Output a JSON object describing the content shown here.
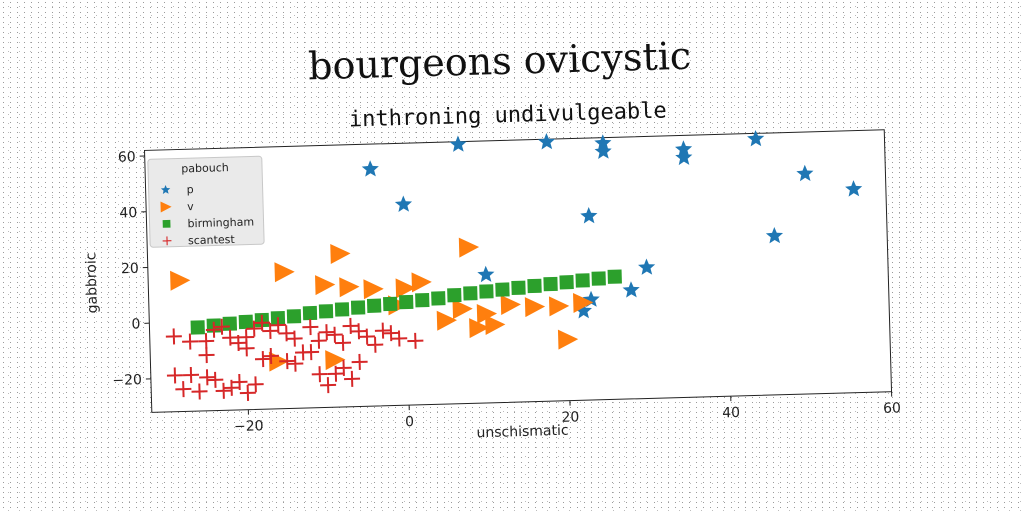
{
  "chart_data": {
    "type": "scatter",
    "title": "bourgeons ovicystic",
    "subtitle": "inthroning undivulgeable",
    "xlabel": "unschismatic",
    "ylabel": "gabbroic",
    "xlim": [
      -32,
      60
    ],
    "ylim": [
      -32,
      62
    ],
    "xticks": [
      -20,
      0,
      20,
      40,
      60
    ],
    "yticks": [
      -20,
      0,
      20,
      40,
      60
    ],
    "xtick_labels": [
      "−20",
      "0",
      "20",
      "40",
      "60"
    ],
    "ytick_labels": [
      "−20",
      "0",
      "20",
      "40",
      "60"
    ],
    "grid": false,
    "legend": {
      "title": "pabouch",
      "placement": "top-left"
    },
    "series": [
      {
        "name": "p",
        "marker": "star",
        "color": "#1f77b4",
        "points": [
          [
            -4,
            53
          ],
          [
            0,
            40
          ],
          [
            7,
            61
          ],
          [
            18,
            61
          ],
          [
            25,
            60
          ],
          [
            25,
            57
          ],
          [
            23,
            34
          ],
          [
            35,
            57
          ],
          [
            35,
            54
          ],
          [
            44,
            60
          ],
          [
            50,
            47
          ],
          [
            56,
            41
          ],
          [
            46,
            25
          ],
          [
            30,
            15
          ],
          [
            28,
            7
          ],
          [
            23,
            4
          ],
          [
            22,
            0
          ],
          [
            10,
            14
          ]
        ]
      },
      {
        "name": "v",
        "marker": "triangle-right",
        "color": "#ff7f0e",
        "points": [
          [
            -28,
            15
          ],
          [
            -15,
            17
          ],
          [
            -8,
            23
          ],
          [
            8,
            24
          ],
          [
            -10,
            12
          ],
          [
            -7,
            11
          ],
          [
            -4,
            10
          ],
          [
            -1,
            4
          ],
          [
            2,
            12
          ],
          [
            7,
            2
          ],
          [
            10,
            0
          ],
          [
            11,
            -4
          ],
          [
            13,
            3
          ],
          [
            16,
            2
          ],
          [
            19,
            2
          ],
          [
            22,
            3
          ],
          [
            20,
            -10
          ],
          [
            -9,
            -15
          ],
          [
            -16,
            -15
          ],
          [
            5,
            -2
          ],
          [
            9,
            -5
          ],
          [
            0,
            10
          ]
        ]
      },
      {
        "name": "birmingham",
        "marker": "square",
        "color": "#2ca02c",
        "points": [
          [
            -26,
            -2
          ],
          [
            -24,
            -1.5
          ],
          [
            -22,
            -1
          ],
          [
            -20,
            -0.5
          ],
          [
            -18,
            0
          ],
          [
            -16,
            0.5
          ],
          [
            -14,
            1
          ],
          [
            -12,
            2
          ],
          [
            -10,
            2.5
          ],
          [
            -8,
            3
          ],
          [
            -6,
            3.5
          ],
          [
            -4,
            4
          ],
          [
            -2,
            4.5
          ],
          [
            0,
            5
          ],
          [
            2,
            5.5
          ],
          [
            4,
            6
          ],
          [
            6,
            7
          ],
          [
            8,
            7.5
          ],
          [
            10,
            8
          ],
          [
            12,
            8.5
          ],
          [
            14,
            9
          ],
          [
            16,
            9.5
          ],
          [
            18,
            10
          ],
          [
            20,
            10.5
          ],
          [
            22,
            11
          ],
          [
            24,
            11.5
          ],
          [
            26,
            12
          ]
        ]
      },
      {
        "name": "scantest",
        "marker": "plus",
        "color": "#d62728",
        "points": [
          [
            -29,
            -5
          ],
          [
            -27,
            -7
          ],
          [
            -25,
            -7
          ],
          [
            -24,
            -3
          ],
          [
            -23,
            -2
          ],
          [
            -22,
            -6
          ],
          [
            -21,
            -8
          ],
          [
            -20,
            -6
          ],
          [
            -19,
            -3
          ],
          [
            -18,
            -1
          ],
          [
            -17,
            -4
          ],
          [
            -16,
            -2
          ],
          [
            -15,
            -5
          ],
          [
            -14,
            -7
          ],
          [
            -13,
            -12
          ],
          [
            -12,
            -3
          ],
          [
            -11,
            -8
          ],
          [
            -10,
            -5
          ],
          [
            -9,
            -6
          ],
          [
            -8,
            -9
          ],
          [
            -7,
            -3
          ],
          [
            -6,
            -5
          ],
          [
            -5,
            -7
          ],
          [
            -4,
            -10
          ],
          [
            -3,
            -5
          ],
          [
            -2,
            -6
          ],
          [
            -1,
            -8
          ],
          [
            1,
            -9
          ],
          [
            -29,
            -19
          ],
          [
            -28,
            -24
          ],
          [
            -27,
            -19
          ],
          [
            -26,
            -25
          ],
          [
            -25,
            -20
          ],
          [
            -24,
            -21
          ],
          [
            -23,
            -25
          ],
          [
            -22,
            -24
          ],
          [
            -21,
            -22
          ],
          [
            -20,
            -26
          ],
          [
            -19,
            -23
          ],
          [
            -18,
            -14
          ],
          [
            -17,
            -13
          ],
          [
            -15,
            -15
          ],
          [
            -14,
            -16
          ],
          [
            -12,
            -12
          ],
          [
            -11,
            -20
          ],
          [
            -10,
            -24
          ],
          [
            -9,
            -20
          ],
          [
            -8,
            -18
          ],
          [
            -7,
            -22
          ],
          [
            -6,
            -16
          ],
          [
            -20,
            -10
          ],
          [
            -25,
            -12
          ]
        ]
      }
    ]
  }
}
